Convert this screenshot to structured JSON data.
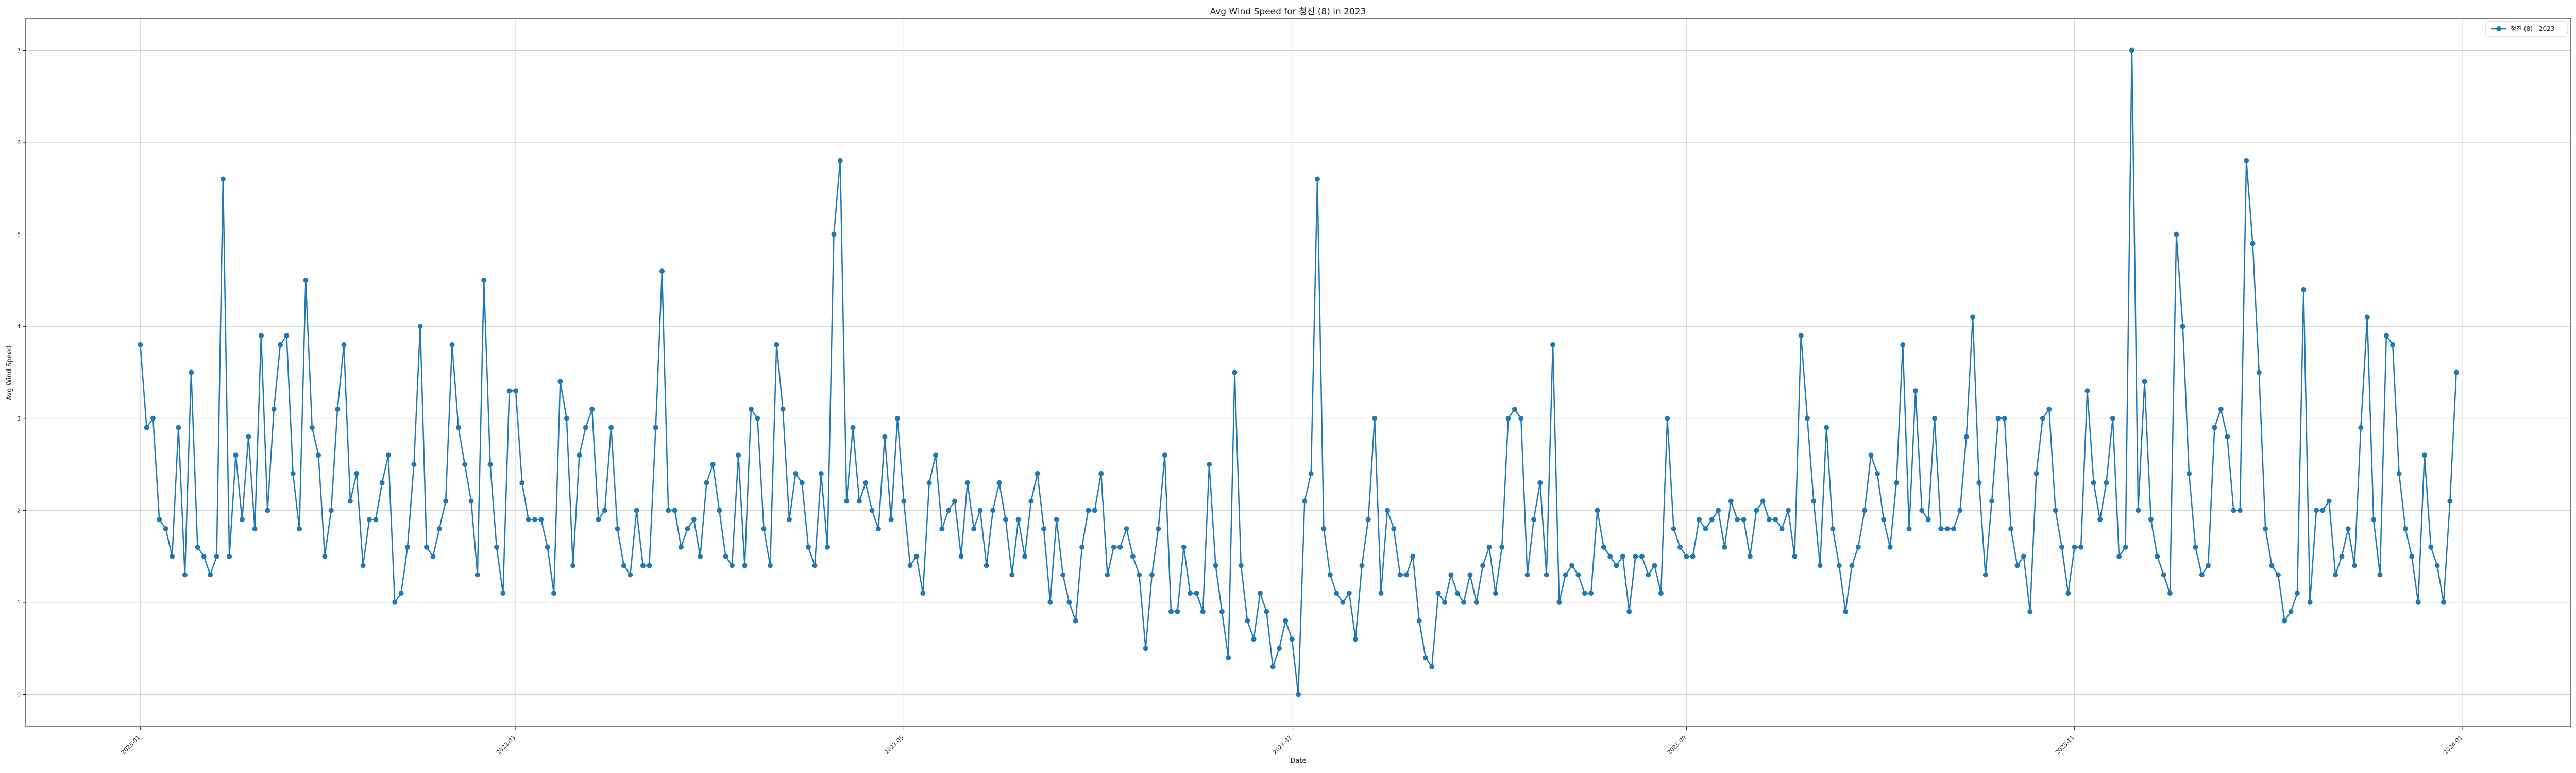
{
  "chart_data": {
    "type": "line",
    "title": "Avg Wind Speed for 청진 (8) in 2023",
    "xlabel": "Date",
    "ylabel": "Avg Wind Speed",
    "x_tick_labels": [
      "2023-01",
      "2023-03",
      "2023-05",
      "2023-07",
      "2023-09",
      "2023-11",
      "2024-01"
    ],
    "y_tick_labels": [
      "0",
      "1",
      "2",
      "3",
      "4",
      "5",
      "6",
      "7"
    ],
    "xlim": [
      "2022-12-14",
      "2024-01-18"
    ],
    "ylim": [
      -0.35,
      7.35
    ],
    "grid": true,
    "legend_position": "top-right",
    "series": [
      {
        "name": "청진 (8) - 2023",
        "color": "#1f77b4",
        "marker": "circle",
        "start_date": "2023-01-01",
        "values": [
          3.8,
          2.9,
          3.0,
          1.9,
          1.8,
          1.5,
          2.9,
          1.3,
          3.5,
          1.6,
          1.5,
          1.3,
          1.5,
          5.6,
          1.5,
          2.6,
          1.9,
          2.8,
          1.8,
          3.9,
          2.0,
          3.1,
          3.8,
          3.9,
          2.4,
          1.8,
          4.5,
          2.9,
          2.6,
          1.5,
          2.0,
          3.1,
          3.8,
          2.1,
          2.4,
          1.4,
          1.9,
          1.9,
          2.3,
          2.6,
          1.0,
          1.1,
          1.6,
          2.5,
          4.0,
          1.6,
          1.5,
          1.8,
          2.1,
          3.8,
          2.9,
          2.5,
          2.1,
          1.3,
          4.5,
          2.5,
          1.6,
          1.1,
          3.3,
          3.3,
          2.3,
          1.9,
          1.9,
          1.9,
          1.6,
          1.1,
          3.4,
          3.0,
          1.4,
          2.6,
          2.9,
          3.1,
          1.9,
          2.0,
          2.9,
          1.8,
          1.4,
          1.3,
          2.0,
          1.4,
          1.4,
          2.9,
          4.6,
          2.0,
          2.0,
          1.6,
          1.8,
          1.9,
          1.5,
          2.3,
          2.5,
          2.0,
          1.5,
          1.4,
          2.6,
          1.4,
          3.1,
          3.0,
          1.8,
          1.4,
          3.8,
          3.1,
          1.9,
          2.4,
          2.3,
          1.6,
          1.4,
          2.4,
          1.6,
          5.0,
          5.8,
          2.1,
          2.9,
          2.1,
          2.3,
          2.0,
          1.8,
          2.8,
          1.9,
          3.0,
          2.1,
          1.4,
          1.5,
          1.1,
          2.3,
          2.6,
          1.8,
          2.0,
          2.1,
          1.5,
          2.3,
          1.8,
          2.0,
          1.4,
          2.0,
          2.3,
          1.9,
          1.3,
          1.9,
          1.5,
          2.1,
          2.4,
          1.8,
          1.0,
          1.9,
          1.3,
          1.0,
          0.8,
          1.6,
          2.0,
          2.0,
          2.4,
          1.3,
          1.6,
          1.6,
          1.8,
          1.5,
          1.3,
          0.5,
          1.3,
          1.8,
          2.6,
          0.9,
          0.9,
          1.6,
          1.1,
          1.1,
          0.9,
          2.5,
          1.4,
          0.9,
          0.4,
          3.5,
          1.4,
          0.8,
          0.6,
          1.1,
          0.9,
          0.3,
          0.5,
          0.8,
          0.6,
          0.0,
          2.1,
          2.4,
          5.6,
          1.8,
          1.3,
          1.1,
          1.0,
          1.1,
          0.6,
          1.4,
          1.9,
          3.0,
          1.1,
          2.0,
          1.8,
          1.3,
          1.3,
          1.5,
          0.8,
          0.4,
          0.3,
          1.1,
          1.0,
          1.3,
          1.1,
          1.0,
          1.3,
          1.0,
          1.4,
          1.6,
          1.1,
          1.6,
          3.0,
          3.1,
          3.0,
          1.3,
          1.9,
          2.3,
          1.3,
          3.8,
          1.0,
          1.3,
          1.4,
          1.3,
          1.1,
          1.1,
          2.0,
          1.6,
          1.5,
          1.4,
          1.5,
          0.9,
          1.5,
          1.5,
          1.3,
          1.4,
          1.1,
          3.0,
          1.8,
          1.6,
          1.5,
          1.5,
          1.9,
          1.8,
          1.9,
          2.0,
          1.6,
          2.1,
          1.9,
          1.9,
          1.5,
          2.0,
          2.1,
          1.9,
          1.9,
          1.8,
          2.0,
          1.5,
          3.9,
          3.0,
          2.1,
          1.4,
          2.9,
          1.8,
          1.4,
          0.9,
          1.4,
          1.6,
          2.0,
          2.6,
          2.4,
          1.9,
          1.6,
          2.3,
          3.8,
          1.8,
          3.3,
          2.0,
          1.9,
          3.0,
          1.8,
          1.8,
          1.8,
          2.0,
          2.8,
          4.1,
          2.3,
          1.3,
          2.1,
          3.0,
          3.0,
          1.8,
          1.4,
          1.5,
          0.9,
          2.4,
          3.0,
          3.1,
          2.0,
          1.6,
          1.1,
          1.6,
          1.6,
          3.3,
          2.3,
          1.9,
          2.3,
          3.0,
          1.5,
          1.6,
          7.0,
          2.0,
          3.4,
          1.9,
          1.5,
          1.3,
          1.1,
          5.0,
          4.0,
          2.4,
          1.6,
          1.3,
          1.4,
          2.9,
          3.1,
          2.8,
          2.0,
          2.0,
          5.8,
          4.9,
          3.5,
          1.8,
          1.4,
          1.3,
          0.8,
          0.9,
          1.1,
          4.4,
          1.0,
          2.0,
          2.0,
          2.1,
          1.3,
          1.5,
          1.8,
          1.4,
          2.9,
          4.1,
          1.9,
          1.3,
          3.9,
          3.8,
          2.4,
          1.8,
          1.5,
          1.0,
          2.6,
          1.6,
          1.4,
          1.0,
          2.1,
          3.5
        ]
      }
    ]
  }
}
